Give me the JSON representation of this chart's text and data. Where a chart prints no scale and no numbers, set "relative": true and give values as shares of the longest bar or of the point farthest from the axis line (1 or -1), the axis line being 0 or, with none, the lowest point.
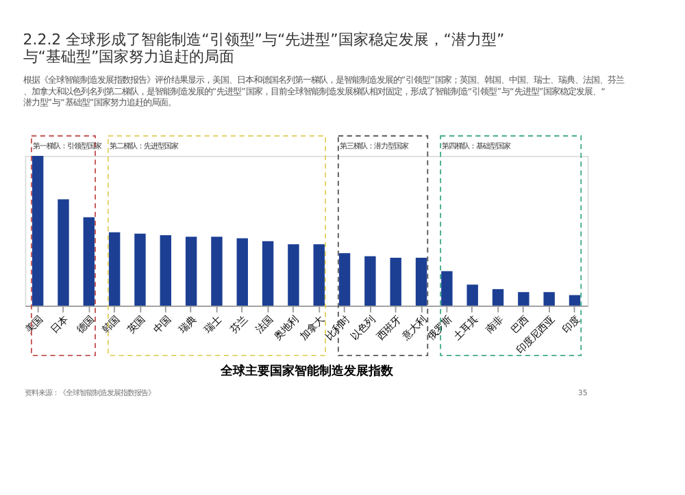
{
  "chart_data": {
    "type": "bar",
    "relative": true,
    "grid": false,
    "title": "2.2.2 全球形成了智能制造“引领型”与“先进型”国家稳定发展，“潜力型”与“基础型”国家努力追赶的局面",
    "subtitle": "根据《全球智能制造发展指数报告》评价结果显示，美国、日本和德国名列第一梯队，是智能制造发展的“引领型”国家；英国、韩国、中国、瑞士、瑞典、法国、芬兰、加拿大和以色列名列第二梯队，是智能制造发展的“先进型”国家，目前全球智能制造发展梯队相对固定，形成了智能制造“引领型”与“先进型”国家稳定发展、“潜力型”与“基础型”国家努力追赶的局面。",
    "xlabel": "全球主要国家智能制造发展指数",
    "categories": [
      "美国",
      "日本",
      "德国",
      "韩国",
      "英国",
      "中国",
      "瑞典",
      "瑞士",
      "芬兰",
      "法国",
      "奥地利",
      "加拿大",
      "比利时",
      "以色列",
      "西班牙",
      "意大利",
      "俄罗斯",
      "土耳其",
      "南非",
      "巴西",
      "印度尼西亚",
      "印度"
    ],
    "series": [
      {
        "color": "#1c3f94",
        "values": [
          1,
          0.71,
          0.59,
          0.49,
          0.48,
          0.47,
          0.46,
          0.46,
          0.45,
          0.43,
          0.41,
          0.41,
          0.35,
          0.33,
          0.32,
          0.32,
          0.23,
          0.14,
          0.11,
          0.09,
          0.09,
          0.07
        ]
      }
    ],
    "annotations": [
      "第一梯队：引领型国家",
      "第二梯队：先进型国家",
      "第三梯队：潜力型国家",
      "第四梯队：基础型国家",
      "资料来源：《全球智能制造发展指数报告》",
      "35"
    ]
  }
}
